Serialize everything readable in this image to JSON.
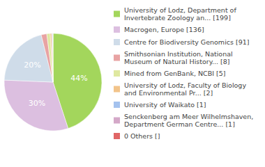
{
  "chart_data": {
    "type": "pie",
    "categories": [
      "University of Lodz, Department of Invertebrate Zoology an... [199]",
      "Macrogen, Europe [136]",
      "Centre for Biodiversity Genomics [91]",
      "Smithsonian Institution, National Museum of Natural History... [8]",
      "Mined from GenBank, NCBI [5]",
      "University of Lodz, Faculty of Biology and Environmental Pr... [2]",
      "University of Waikato [1]",
      "Senckenberg am Meer Wilhelmshaven, Department German Centre... [1]",
      "0 Others []"
    ],
    "values": [
      44,
      30,
      20,
      1.8,
      1.1,
      0.5,
      0.2,
      0.2,
      0
    ],
    "value_labels": [
      "44%",
      "30%",
      "20%",
      null,
      null,
      null,
      null,
      null,
      null
    ],
    "colors": [
      "#a3d65c",
      "#dcbfe0",
      "#cfdce9",
      "#e8a3a3",
      "#dfe8a0",
      "#f2c48a",
      "#a4c2ee",
      "#d4a8c8",
      "#e06666"
    ],
    "data_labels": true,
    "legend": "right"
  }
}
